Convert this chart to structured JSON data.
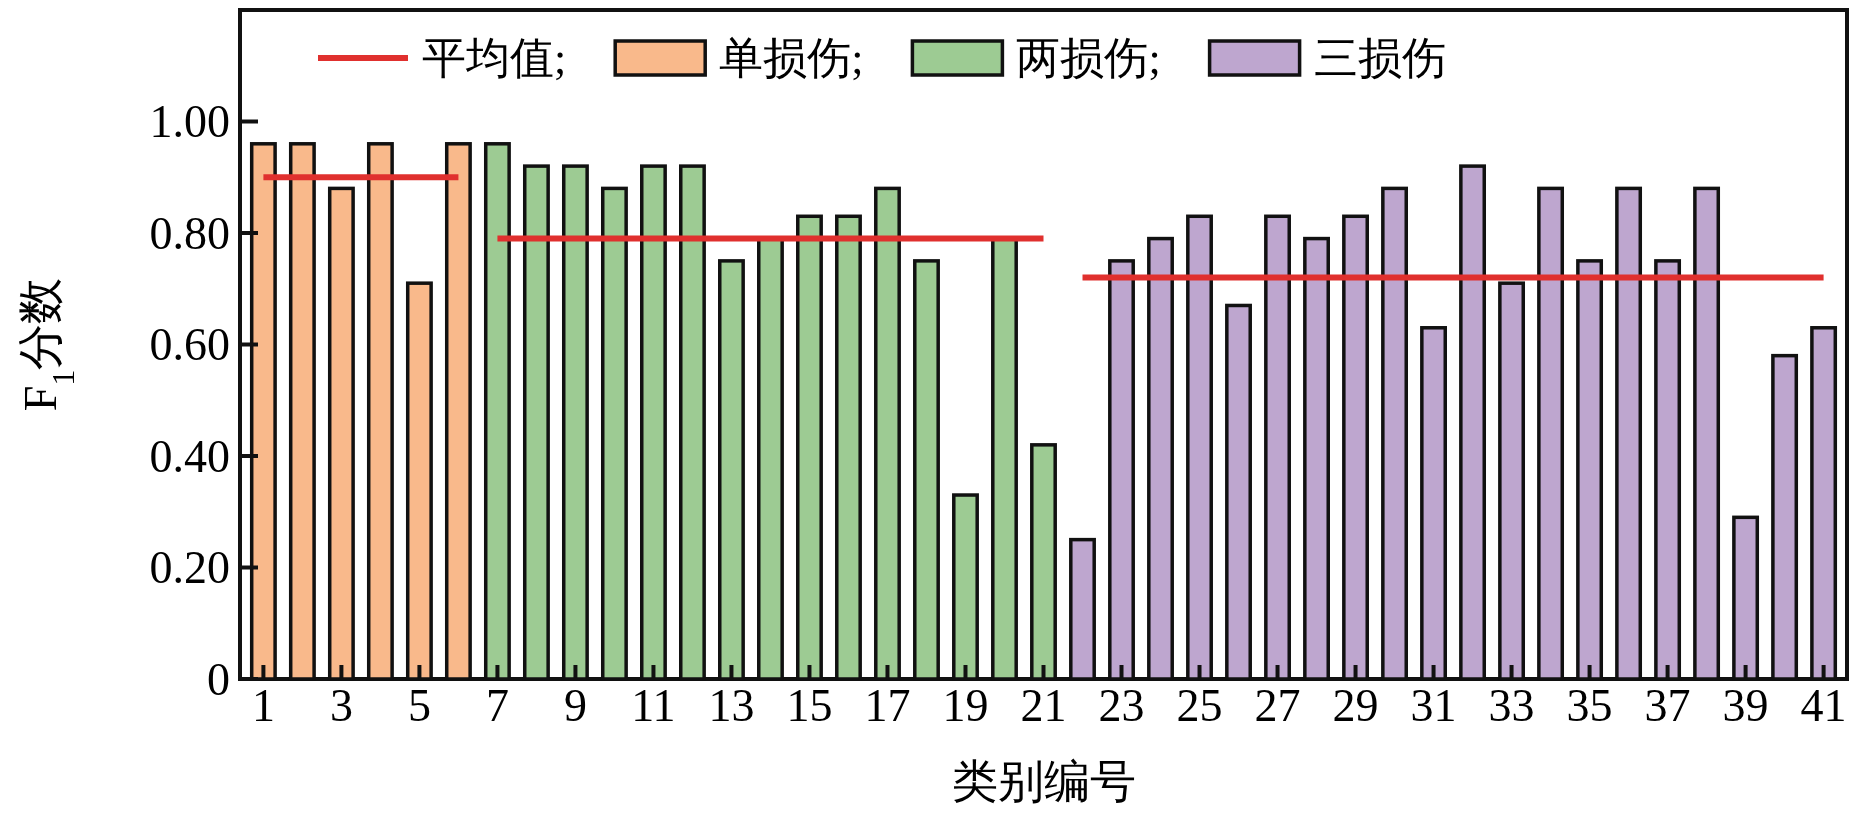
{
  "chart_data": {
    "type": "bar",
    "xlabel": "类别编号",
    "ylabel": "F$_{1}$分数",
    "xlim": [
      0.4,
      41.6
    ],
    "xticks": [
      1,
      3,
      5,
      7,
      9,
      11,
      13,
      15,
      17,
      19,
      21,
      23,
      25,
      27,
      29,
      31,
      33,
      35,
      37,
      39,
      41
    ],
    "ylim": [
      0,
      1.2
    ],
    "yticks": [
      0,
      {
        "value": 0.2,
        "label": "0.20"
      },
      {
        "value": 0.4,
        "label": "0.40"
      },
      {
        "value": 0.6,
        "label": "0.60"
      },
      {
        "value": 0.8,
        "label": "0.80"
      },
      {
        "value": 1,
        "label": "1.00"
      }
    ],
    "legend": "top",
    "grid": false,
    "series": [
      {
        "name": "平均值;",
        "type": "line",
        "color": "#e0302e",
        "x": [
          1,
          6
        ],
        "values": [
          0.9,
          0.9
        ]
      },
      {
        "type": "line",
        "color": "#e0302e",
        "x": [
          7,
          21
        ],
        "values": [
          0.79,
          0.79
        ]
      },
      {
        "type": "line",
        "color": "#e0302e",
        "x": [
          22,
          41
        ],
        "values": [
          0.72,
          0.72
        ]
      },
      {
        "name": "单损伤;",
        "color": "#f9b98b",
        "x": [
          1,
          2,
          3,
          4,
          5,
          6
        ],
        "values": [
          0.96,
          0.96,
          0.88,
          0.96,
          0.71,
          0.96
        ]
      },
      {
        "name": "两损伤;",
        "color": "#9dcb93",
        "x": [
          7,
          8,
          9,
          10,
          11,
          12,
          13,
          14,
          15,
          16,
          17,
          18,
          19,
          20,
          21
        ],
        "values": [
          0.96,
          0.92,
          0.92,
          0.88,
          0.92,
          0.92,
          0.75,
          0.79,
          0.83,
          0.83,
          0.88,
          0.75,
          0.33,
          0.79,
          0.42
        ]
      },
      {
        "name": "三损伤",
        "color": "#bea6cf",
        "x": [
          22,
          23,
          24,
          25,
          26,
          27,
          28,
          29,
          30,
          31,
          32,
          33,
          34,
          35,
          36,
          37,
          38,
          39,
          40,
          41
        ],
        "values": [
          0.25,
          0.75,
          0.79,
          0.83,
          0.67,
          0.83,
          0.79,
          0.83,
          0.88,
          0.63,
          0.92,
          0.71,
          0.88,
          0.75,
          0.88,
          0.75,
          0.88,
          0.29,
          0.58,
          0.63
        ]
      }
    ]
  }
}
